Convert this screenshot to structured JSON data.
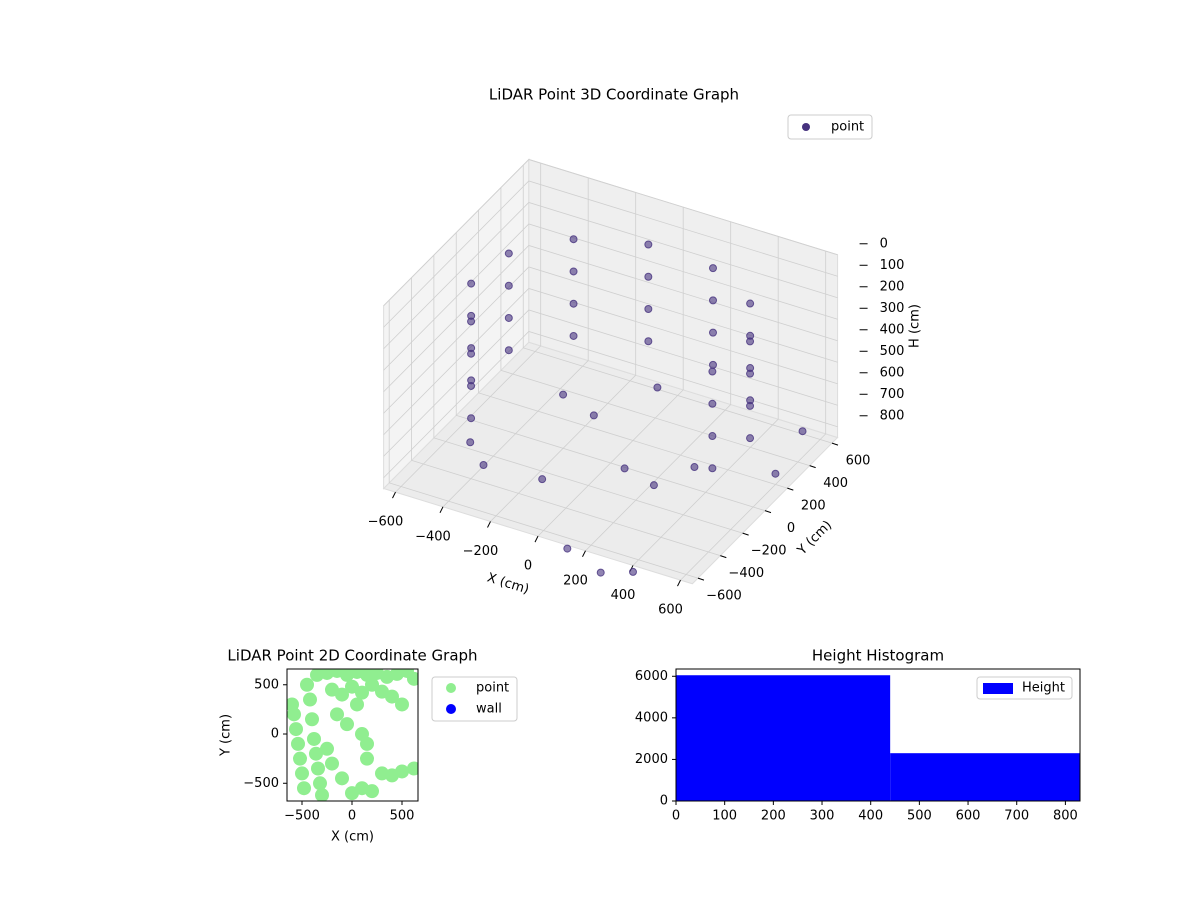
{
  "chart_data": [
    {
      "type": "scatter3d",
      "title": "LiDAR Point 3D Coordinate Graph",
      "xlabel": "X (cm)",
      "ylabel": "Y (cm)",
      "zlabel": "H (cm)",
      "xlim": [
        -650,
        650
      ],
      "ylim": [
        -650,
        650
      ],
      "zlim": [
        850,
        0
      ],
      "xticks": [
        {
          "value": -600,
          "label": "−600"
        },
        {
          "value": -400,
          "label": "−400"
        },
        {
          "value": -200,
          "label": "−200"
        },
        0,
        200,
        400,
        600
      ],
      "yticks": [
        {
          "value": -600,
          "label": "−600"
        },
        {
          "value": -400,
          "label": "−400"
        },
        {
          "value": -200,
          "label": "−200"
        },
        0,
        200,
        400,
        600
      ],
      "zticks": [
        0,
        100,
        200,
        300,
        400,
        500,
        600,
        700,
        800
      ],
      "grid": true,
      "legend": "upper right",
      "series": [
        {
          "name": "point",
          "color": "#46327e",
          "x": [
            517,
            517,
            517,
            517,
            542,
            542,
            542,
            542,
            421,
            421,
            421,
            421,
            188,
            188,
            188,
            188,
            -96,
            -96,
            -96,
            -96,
            -354,
            -354,
            -354,
            -354,
            -517,
            -517,
            -517,
            -517,
            -542,
            -542,
            -542,
            -542,
            -421,
            -421,
            -421,
            -421,
            -300,
            -100,
            200,
            300,
            400,
            100,
            250,
            400,
            -450,
            600,
            620,
            -200,
            0,
            150
          ],
          "y": [
            -188,
            -188,
            -188,
            -188,
            96,
            96,
            96,
            96,
            354,
            354,
            354,
            354,
            517,
            517,
            517,
            517,
            542,
            542,
            542,
            542,
            421,
            421,
            421,
            421,
            188,
            188,
            188,
            188,
            -96,
            -96,
            -96,
            -96,
            -354,
            -354,
            -354,
            -354,
            -500,
            -400,
            -300,
            -250,
            -100,
            -600,
            -620,
            -650,
            -300,
            200,
            400,
            0,
            -150,
            100
          ],
          "z": [
            150,
            300,
            450,
            600,
            150,
            300,
            450,
            600,
            150,
            300,
            450,
            600,
            150,
            300,
            450,
            600,
            150,
            300,
            450,
            600,
            150,
            300,
            450,
            600,
            150,
            300,
            450,
            600,
            150,
            300,
            450,
            600,
            150,
            300,
            450,
            600,
            700,
            750,
            650,
            720,
            680,
            900,
            950,
            880,
            750,
            800,
            700,
            600,
            550,
            500
          ]
        }
      ]
    },
    {
      "type": "scatter",
      "title": "LiDAR Point 2D Coordinate Graph",
      "xlabel": "X (cm)",
      "ylabel": "Y (cm)",
      "xlim": [
        -650,
        660
      ],
      "ylim": [
        -680,
        660
      ],
      "xticks": [
        {
          "value": -500,
          "label": "−500"
        },
        0,
        500
      ],
      "yticks": [
        {
          "value": -500,
          "label": "−500"
        },
        0,
        500
      ],
      "legend": "outside upper right",
      "series": [
        {
          "name": "point",
          "color": "#90ee90",
          "x": [
            -600,
            -580,
            -560,
            -540,
            -520,
            -500,
            -480,
            -450,
            -420,
            -400,
            -380,
            -360,
            -340,
            -320,
            -300,
            -350,
            -250,
            -150,
            -50,
            50,
            150,
            250,
            350,
            450,
            550,
            620,
            -200,
            -100,
            0,
            100,
            200,
            300,
            400,
            500,
            -150,
            -50,
            100,
            150,
            -200,
            -100,
            0,
            100,
            200,
            300,
            400,
            500,
            620,
            -250,
            150,
            50
          ],
          "y": [
            300,
            200,
            50,
            -100,
            -250,
            -400,
            -550,
            500,
            350,
            150,
            -50,
            -200,
            -350,
            -500,
            -620,
            600,
            620,
            640,
            600,
            630,
            600,
            620,
            580,
            610,
            640,
            560,
            450,
            400,
            480,
            420,
            500,
            430,
            380,
            300,
            200,
            100,
            0,
            -100,
            -300,
            -450,
            -600,
            -550,
            -580,
            -400,
            -420,
            -380,
            -350,
            -150,
            -250,
            300
          ]
        },
        {
          "name": "wall",
          "color": "#0000ff",
          "x": [],
          "y": []
        }
      ]
    },
    {
      "type": "histogram",
      "title": "Height Histogram",
      "xlim": [
        0,
        830
      ],
      "ylim": [
        0,
        6350
      ],
      "xticks": [
        0,
        100,
        200,
        300,
        400,
        500,
        600,
        700,
        800
      ],
      "yticks": [
        0,
        2000,
        4000,
        6000
      ],
      "legend": "upper right",
      "bins": [
        0,
        440,
        830
      ],
      "series": [
        {
          "name": "Height",
          "color": "#0000ff",
          "values": [
            6050,
            2300
          ]
        }
      ]
    }
  ]
}
